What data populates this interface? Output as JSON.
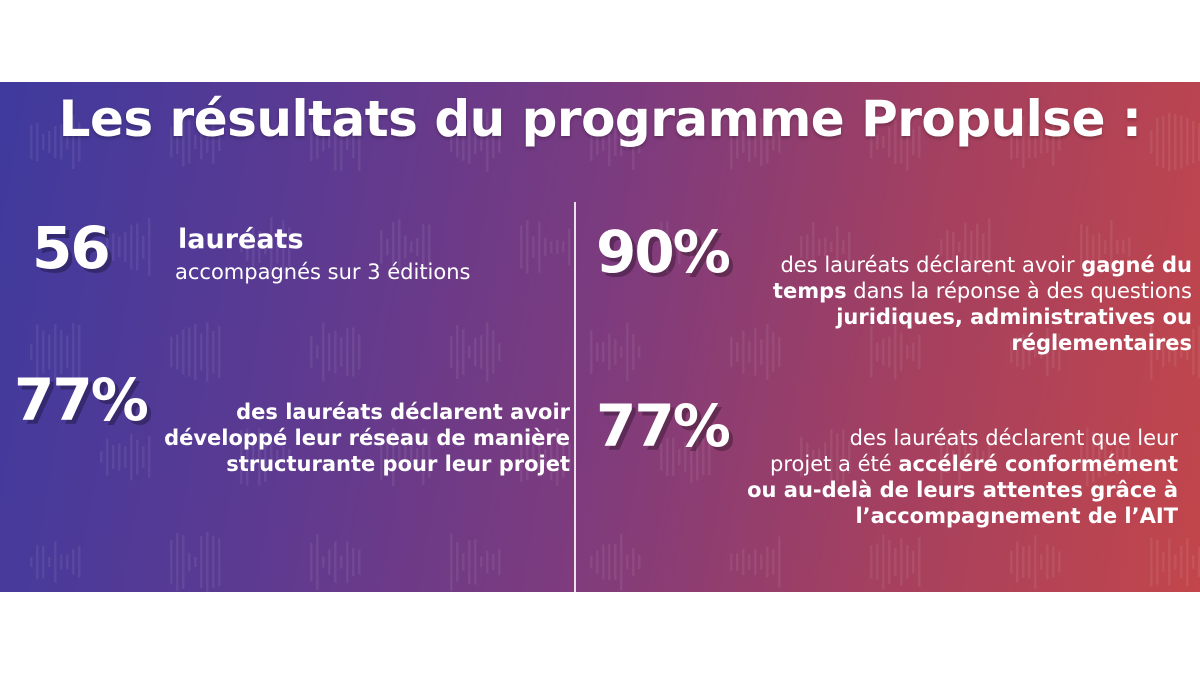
{
  "title": "Les résultats du programme Propulse :",
  "stats": {
    "s1": {
      "value": "56",
      "heading": "lauréats",
      "line1": "accompagnés sur 3 éditions"
    },
    "s2": {
      "value": "90%",
      "p1": "des lauréats déclarent avoir ",
      "p2": "gagné du",
      "p3": "temps",
      "p4": " dans la réponse à des questions",
      "p5": "juridiques, administratives ou",
      "p6": "réglementaires"
    },
    "s3": {
      "value": "77%",
      "l1": "des lauréats déclarent avoir",
      "l2": "développé leur réseau de manière",
      "l3": "structurante pour leur projet"
    },
    "s4": {
      "value": "77%",
      "p1": "des lauréats déclarent que leur",
      "p2": "projet a été ",
      "p3": "accéléré conformément",
      "p4": "ou au-delà de leurs attentes grâce à",
      "p5": "l’accompagnement de l’AIT"
    }
  },
  "colors": {
    "text": "#ffffff",
    "gradient_start": "#3f3a9e",
    "gradient_end": "#c2464b"
  }
}
